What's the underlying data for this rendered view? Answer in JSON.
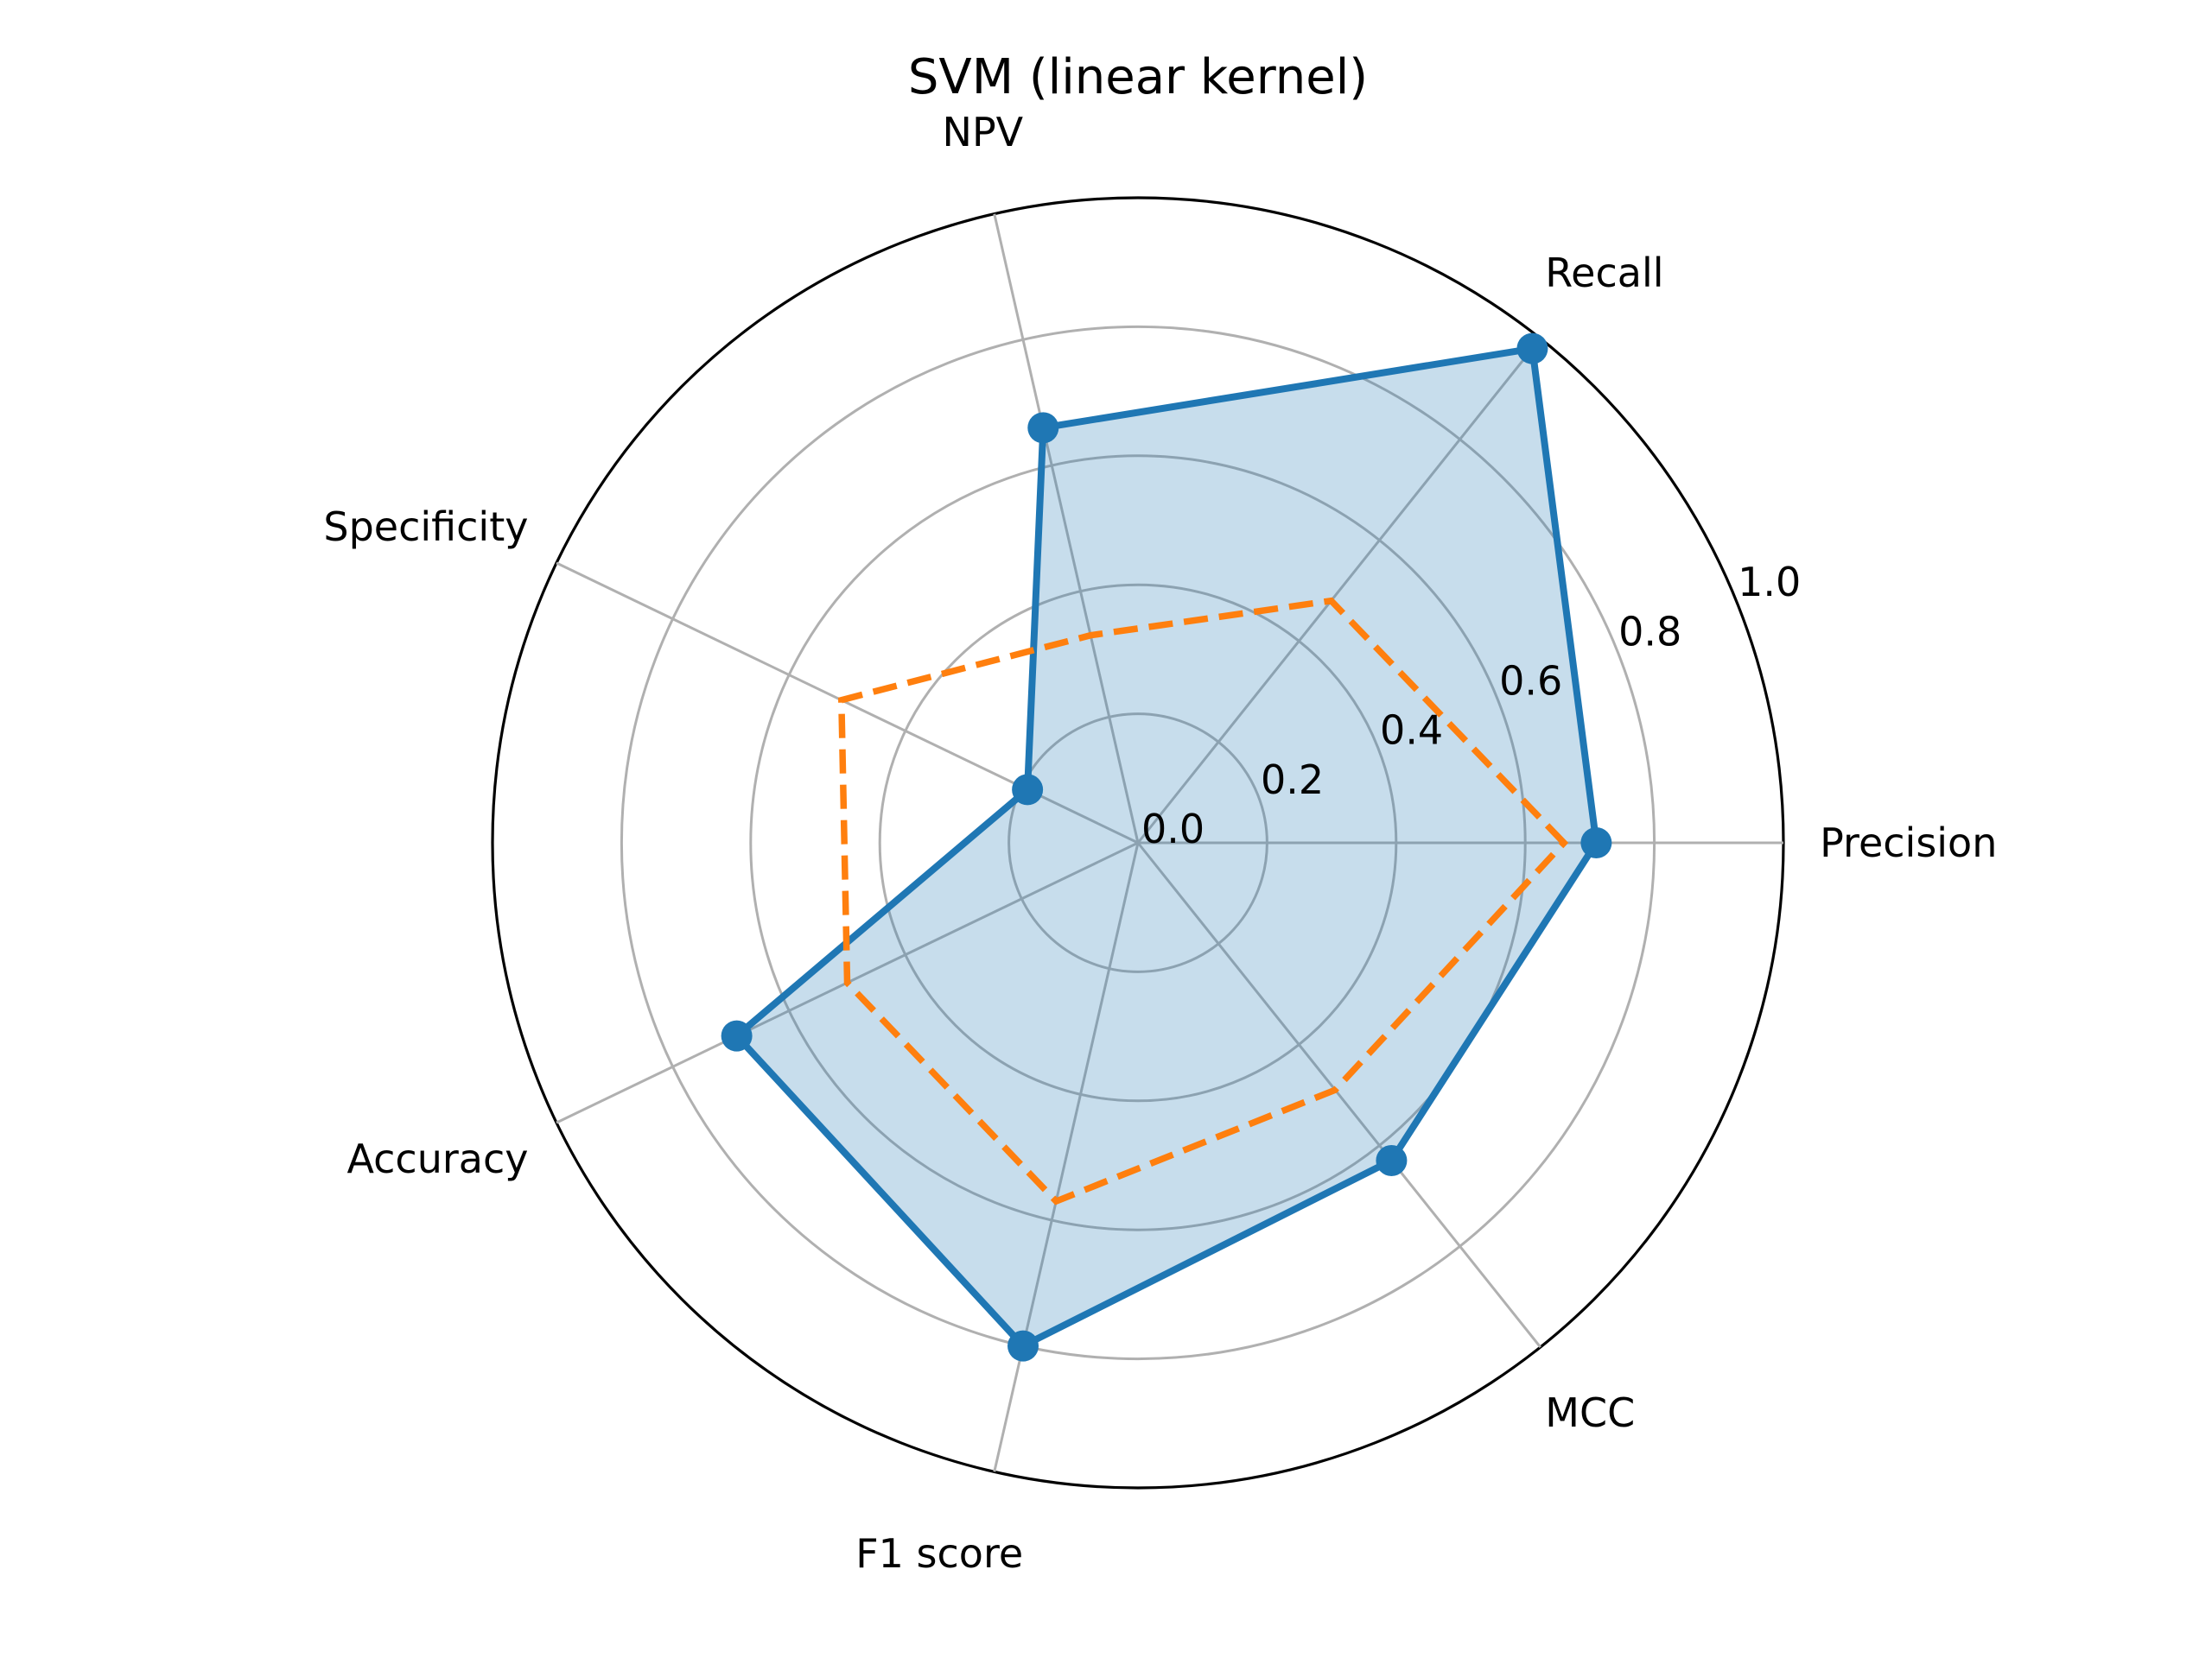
{
  "chart_data": {
    "type": "radar",
    "title": "SVM (linear kernel)",
    "categories": [
      "Precision",
      "Recall",
      "NPV",
      "Specificity",
      "Accuracy",
      "F1 score",
      "MCC"
    ],
    "radial_ticks": [
      "0.0",
      "0.2",
      "0.4",
      "0.6",
      "0.8",
      "1.0"
    ],
    "rlim": [
      0,
      1
    ],
    "grid": true,
    "legend": "none",
    "series": [
      {
        "values": [
          0.71,
          0.98,
          0.66,
          0.19,
          0.69,
          0.8,
          0.63
        ],
        "color": "#1f77b4",
        "style": "solid",
        "markers": true,
        "fill": true,
        "fill_color": "#1f77b4",
        "fill_opacity": 0.25
      },
      {
        "values": [
          0.66,
          0.48,
          0.33,
          0.51,
          0.5,
          0.57,
          0.49
        ],
        "color": "#ff7f0e",
        "style": "dashed",
        "markers": false,
        "fill": false
      }
    ]
  }
}
